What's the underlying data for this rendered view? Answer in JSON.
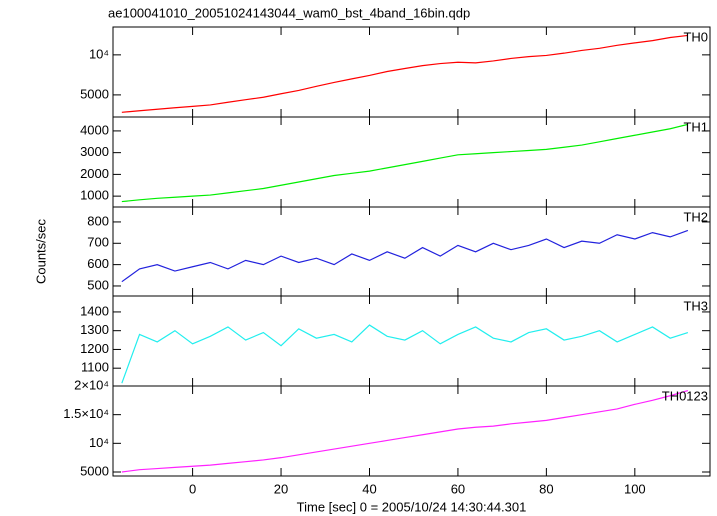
{
  "chart_data": [
    {
      "type": "line",
      "title": "ae100041010_20051024143044_wam0_bst_4band_16bin.qdp",
      "log": true,
      "x": [
        -16,
        -12,
        -8,
        -4,
        0,
        4,
        8,
        12,
        16,
        20,
        24,
        28,
        32,
        36,
        40,
        44,
        48,
        52,
        56,
        60,
        64,
        68,
        72,
        76,
        80,
        84,
        88,
        92,
        96,
        100,
        104,
        108,
        112
      ],
      "series": [
        {
          "name": "TH0",
          "color": "#ff0000",
          "values": [
            3700,
            3800,
            3900,
            4000,
            4100,
            4200,
            4400,
            4600,
            4800,
            5100,
            5400,
            5800,
            6200,
            6600,
            7000,
            7500,
            7900,
            8300,
            8600,
            8800,
            8700,
            9000,
            9400,
            9700,
            9900,
            10300,
            10800,
            11200,
            11800,
            12300,
            12800,
            13500,
            14000
          ]
        }
      ],
      "xlim": [
        -18,
        117
      ],
      "xticks": [
        0,
        20,
        40,
        60,
        80,
        100
      ],
      "ylim": [
        3410,
        16200
      ],
      "yticks": [
        {
          "value": 10000,
          "label": "10⁴"
        },
        5000
      ]
    },
    {
      "type": "line",
      "x": [
        -16,
        -12,
        -8,
        -4,
        0,
        4,
        8,
        12,
        16,
        20,
        24,
        28,
        32,
        36,
        40,
        44,
        48,
        52,
        56,
        60,
        64,
        68,
        72,
        76,
        80,
        84,
        88,
        92,
        96,
        100,
        104,
        108,
        112
      ],
      "series": [
        {
          "name": "TH1",
          "color": "#00ee00",
          "values": [
            750,
            830,
            900,
            950,
            1000,
            1050,
            1150,
            1250,
            1350,
            1500,
            1650,
            1800,
            1950,
            2050,
            2150,
            2300,
            2450,
            2600,
            2750,
            2900,
            2950,
            3000,
            3050,
            3100,
            3150,
            3250,
            3350,
            3500,
            3650,
            3800,
            3950,
            4100,
            4300
          ]
        }
      ],
      "xlim": [
        -18,
        117
      ],
      "xticks": [
        0,
        20,
        40,
        60,
        80,
        100
      ],
      "ylim": [
        500,
        4640
      ],
      "yticks": [
        1000,
        2000,
        3000,
        4000
      ]
    },
    {
      "type": "line",
      "ylabel": "Counts/sec",
      "x": [
        -16,
        -12,
        -8,
        -4,
        0,
        4,
        8,
        12,
        16,
        20,
        24,
        28,
        32,
        36,
        40,
        44,
        48,
        52,
        56,
        60,
        64,
        68,
        72,
        76,
        80,
        84,
        88,
        92,
        96,
        100,
        104,
        108,
        112
      ],
      "series": [
        {
          "name": "TH2",
          "color": "#2222dd",
          "values": [
            520,
            580,
            600,
            570,
            590,
            610,
            580,
            620,
            600,
            640,
            610,
            630,
            600,
            650,
            620,
            660,
            630,
            680,
            640,
            690,
            660,
            700,
            670,
            690,
            720,
            680,
            710,
            700,
            740,
            720,
            750,
            730,
            760
          ]
        }
      ],
      "xlim": [
        -18,
        117
      ],
      "xticks": [
        0,
        20,
        40,
        60,
        80,
        100
      ],
      "ylim": [
        453,
        870
      ],
      "yticks": [
        500,
        600,
        700,
        800
      ]
    },
    {
      "type": "line",
      "x": [
        -16,
        -12,
        -8,
        -4,
        0,
        4,
        8,
        12,
        16,
        20,
        24,
        28,
        32,
        36,
        40,
        44,
        48,
        52,
        56,
        60,
        64,
        68,
        72,
        76,
        80,
        84,
        88,
        92,
        96,
        100,
        104,
        108,
        112
      ],
      "series": [
        {
          "name": "TH3",
          "color": "#22eeee",
          "values": [
            1020,
            1280,
            1240,
            1300,
            1230,
            1270,
            1320,
            1250,
            1290,
            1220,
            1310,
            1260,
            1280,
            1240,
            1330,
            1270,
            1250,
            1300,
            1230,
            1280,
            1320,
            1260,
            1240,
            1290,
            1310,
            1250,
            1270,
            1300,
            1240,
            1280,
            1320,
            1260,
            1290
          ]
        }
      ],
      "xlim": [
        -18,
        117
      ],
      "xticks": [
        0,
        20,
        40,
        60,
        80,
        100
      ],
      "ylim": [
        1005,
        1485
      ],
      "yticks": [
        1100,
        1200,
        1300,
        1400
      ]
    },
    {
      "type": "line",
      "xlabel": "Time [sec] 0 = 2005/10/24 14:30:44.301",
      "x": [
        -16,
        -12,
        -8,
        -4,
        0,
        4,
        8,
        12,
        16,
        20,
        24,
        28,
        32,
        36,
        40,
        44,
        48,
        52,
        56,
        60,
        64,
        68,
        72,
        76,
        80,
        84,
        88,
        92,
        96,
        100,
        104,
        108,
        112
      ],
      "series": [
        {
          "name": "TH0123",
          "color": "#ff22ff",
          "values": [
            5000,
            5400,
            5600,
            5800,
            6000,
            6200,
            6500,
            6800,
            7100,
            7500,
            8000,
            8500,
            9000,
            9500,
            10000,
            10500,
            11000,
            11500,
            12000,
            12500,
            12800,
            13000,
            13400,
            13700,
            14000,
            14500,
            15000,
            15500,
            16000,
            16800,
            17500,
            18300,
            19200
          ]
        }
      ],
      "xlim": [
        -18,
        117
      ],
      "xticks": [
        0,
        20,
        40,
        60,
        80,
        100
      ],
      "ylim": [
        4300,
        20000
      ],
      "yticks": [
        {
          "value": 20000,
          "label": "2×10⁴"
        },
        {
          "value": 15000,
          "label": "1.5×10⁴"
        },
        {
          "value": 10000,
          "label": "10⁴"
        },
        5000
      ]
    }
  ]
}
